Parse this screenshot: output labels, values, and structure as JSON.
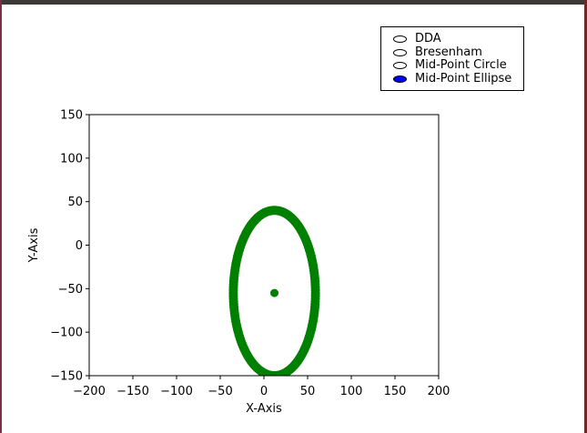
{
  "radio_panel": {
    "options": [
      {
        "label": "DDA",
        "selected": false
      },
      {
        "label": "Bresenham",
        "selected": false
      },
      {
        "label": "Mid-Point Circle",
        "selected": false
      },
      {
        "label": "Mid-Point Ellipse",
        "selected": true
      }
    ],
    "selected_color": "#0000ff"
  },
  "chart_data": {
    "type": "scatter",
    "title": "",
    "xlabel": "X-Axis",
    "ylabel": "Y-Axis",
    "xlim": [
      -200,
      200
    ],
    "ylim": [
      -150,
      150
    ],
    "xticks": [
      -200,
      -150,
      -100,
      -50,
      0,
      50,
      100,
      150,
      200
    ],
    "yticks": [
      -150,
      -100,
      -50,
      0,
      50,
      100,
      150
    ],
    "xtick_labels": [
      "−200",
      "−150",
      "−100",
      "−50",
      "0",
      "50",
      "100",
      "150",
      "200"
    ],
    "ytick_labels": [
      "−150",
      "−100",
      "−50",
      "0",
      "50",
      "100",
      "150"
    ],
    "grid": false,
    "color": "#008000",
    "series": [
      {
        "center": [
          12,
          -55
        ],
        "rx": 47,
        "ry": 95,
        "shape": "ellipse outline"
      }
    ],
    "center_point": [
      12,
      -55
    ]
  }
}
